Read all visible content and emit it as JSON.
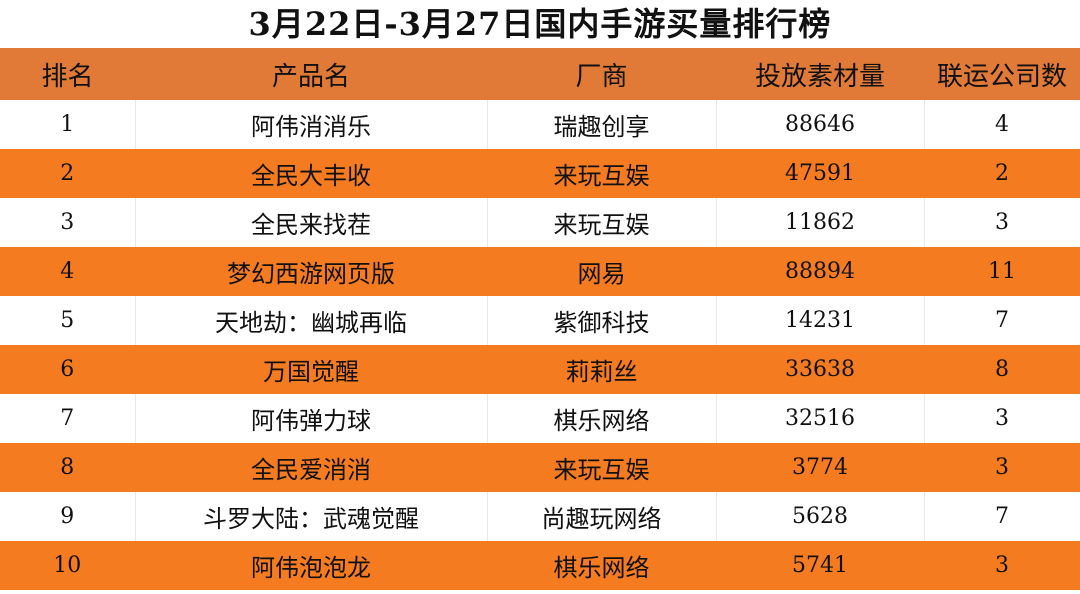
{
  "title": "3月22日-3月27日国内手游买量排行榜",
  "colors": {
    "header": "#e07a36",
    "stripe": "#f47b20",
    "row": "#ffffff"
  },
  "table": {
    "headers": [
      "排名",
      "产品名",
      "厂商",
      "投放素材量",
      "联运公司数"
    ],
    "rows": [
      [
        "1",
        "阿伟消消乐",
        "瑞趣创享",
        "88646",
        "4"
      ],
      [
        "2",
        "全民大丰收",
        "来玩互娱",
        "47591",
        "2"
      ],
      [
        "3",
        "全民来找茬",
        "来玩互娱",
        "11862",
        "3"
      ],
      [
        "4",
        "梦幻西游网页版",
        "网易",
        "88894",
        "11"
      ],
      [
        "5",
        "天地劫：幽城再临",
        "紫御科技",
        "14231",
        "7"
      ],
      [
        "6",
        "万国觉醒",
        "莉莉丝",
        "33638",
        "8"
      ],
      [
        "7",
        "阿伟弹力球",
        "棋乐网络",
        "32516",
        "3"
      ],
      [
        "8",
        "全民爱消消",
        "来玩互娱",
        "3774",
        "3"
      ],
      [
        "9",
        "斗罗大陆：武魂觉醒",
        "尚趣玩网络",
        "5628",
        "7"
      ],
      [
        "10",
        "阿伟泡泡龙",
        "棋乐网络",
        "5741",
        "3"
      ]
    ]
  }
}
